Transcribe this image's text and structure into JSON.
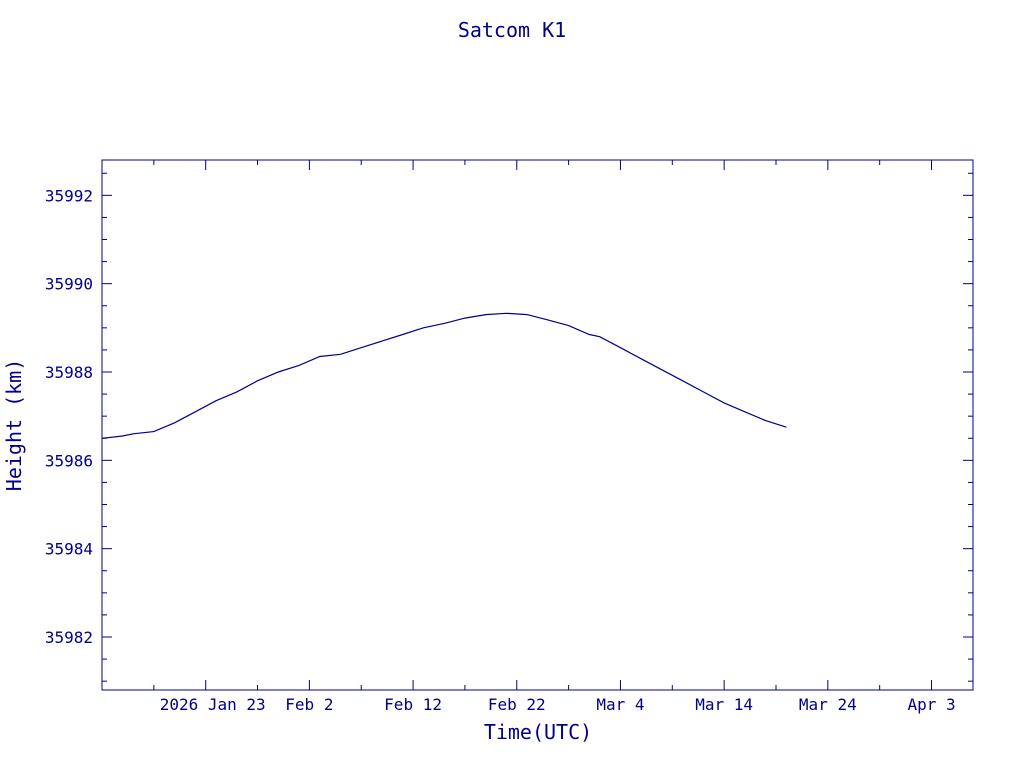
{
  "chart_data": {
    "type": "line",
    "title": "Satcom K1",
    "xlabel": "Time(UTC)",
    "ylabel": "Height (km)",
    "color": "#00008b",
    "x_tick_labels": [
      "2026 Jan 23",
      "Feb  2",
      "Feb 12",
      "Feb 22",
      "Mar  4",
      "Mar 14",
      "Mar 24",
      "Apr  3"
    ],
    "x_tick_dates": [
      "2026-01-23",
      "2026-02-02",
      "2026-02-12",
      "2026-02-22",
      "2026-03-04",
      "2026-03-14",
      "2026-03-24",
      "2026-04-03"
    ],
    "xlim": [
      "2026-01-13",
      "2026-04-07"
    ],
    "y_tick_labels": [
      "35982",
      "35984",
      "35986",
      "35988",
      "35990",
      "35992"
    ],
    "y_ticks": [
      35982,
      35984,
      35986,
      35988,
      35990,
      35992
    ],
    "ylim": [
      35980.8,
      35992.8
    ],
    "series": [
      {
        "x": [
          "2026-01-13",
          "2026-01-15",
          "2026-01-16",
          "2026-01-18",
          "2026-01-20",
          "2026-01-22",
          "2026-01-24",
          "2026-01-26",
          "2026-01-28",
          "2026-01-30",
          "2026-02-01",
          "2026-02-03",
          "2026-02-05",
          "2026-02-07",
          "2026-02-09",
          "2026-02-11",
          "2026-02-13",
          "2026-02-15",
          "2026-02-17",
          "2026-02-19",
          "2026-02-21",
          "2026-02-23",
          "2026-02-25",
          "2026-02-27",
          "2026-03-01",
          "2026-03-02",
          "2026-03-04",
          "2026-03-06",
          "2026-03-08",
          "2026-03-10",
          "2026-03-12",
          "2026-03-14",
          "2026-03-16",
          "2026-03-18",
          "2026-03-20"
        ],
        "y": [
          35986.5,
          35986.55,
          35986.6,
          35986.65,
          35986.85,
          35987.1,
          35987.35,
          35987.55,
          35987.8,
          35988.0,
          35988.15,
          35988.35,
          35988.4,
          35988.55,
          35988.7,
          35988.85,
          35989.0,
          35989.1,
          35989.22,
          35989.3,
          35989.33,
          35989.3,
          35989.18,
          35989.05,
          35988.85,
          35988.8,
          35988.55,
          35988.3,
          35988.05,
          35987.8,
          35987.55,
          35987.3,
          35987.1,
          35986.9,
          35986.75
        ]
      }
    ]
  }
}
